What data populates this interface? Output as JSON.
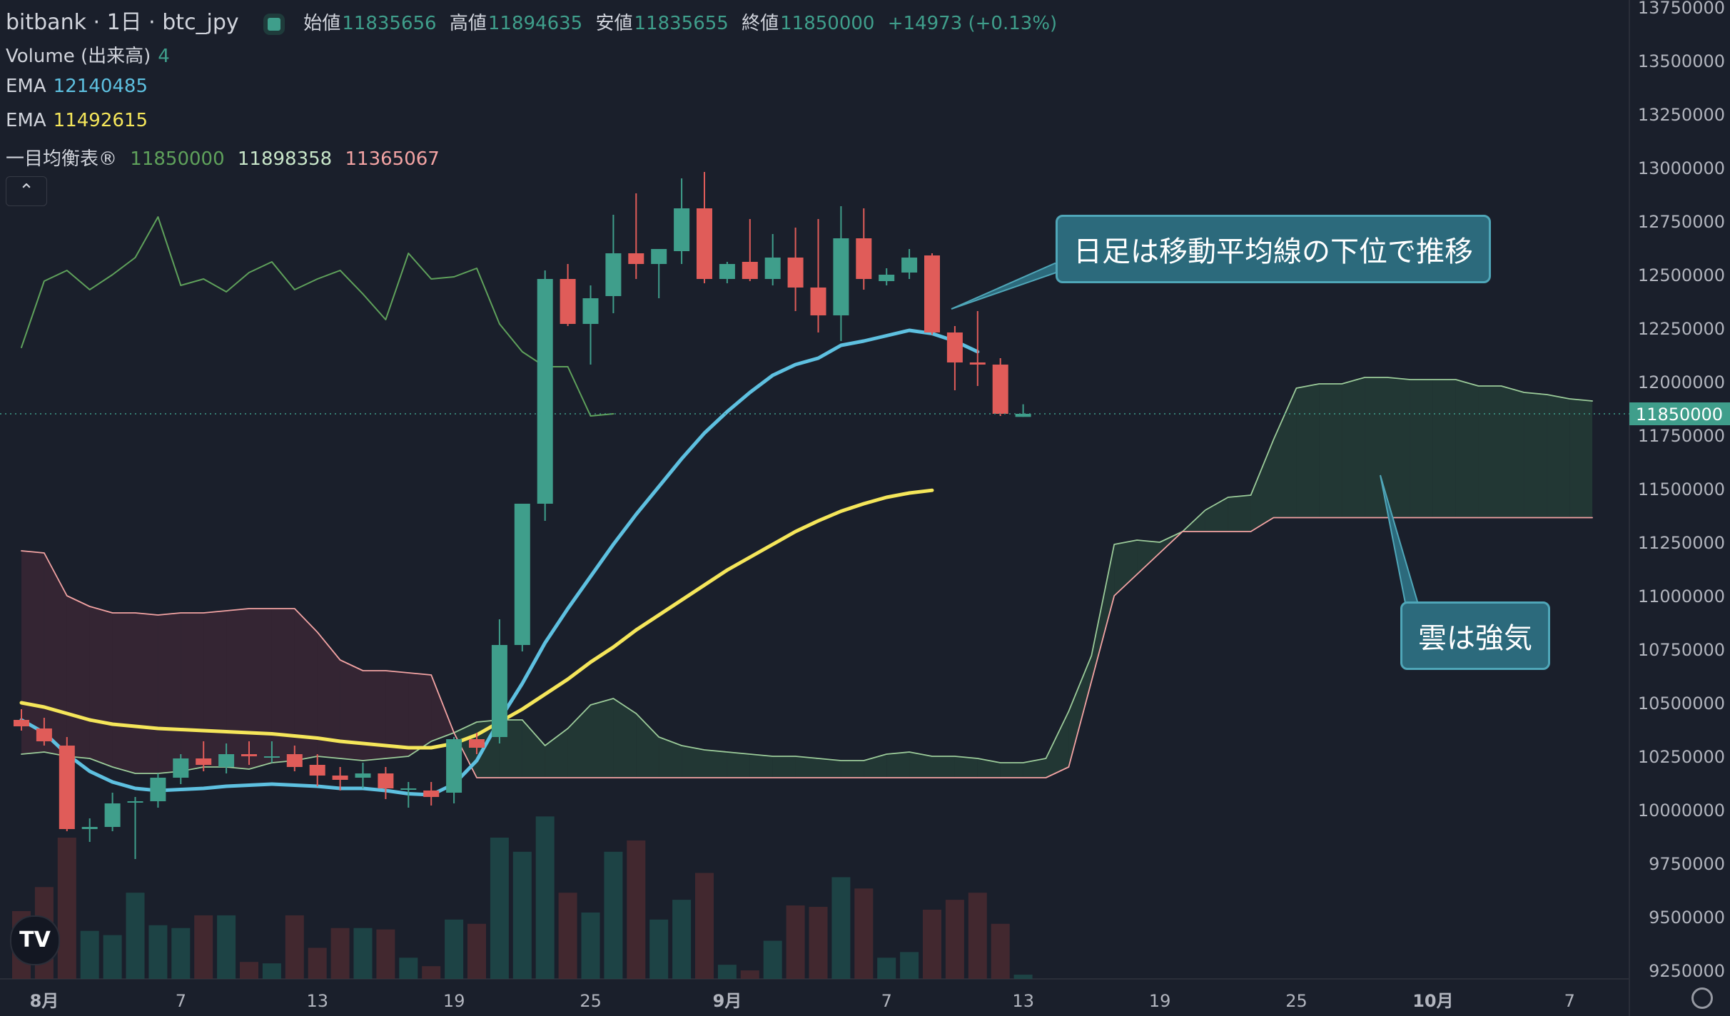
{
  "header": {
    "symbol": "bitbank · 1日 · btc_jpy",
    "open_label": "始値",
    "open": "11835656",
    "high_label": "高値",
    "high": "11894635",
    "low_label": "安値",
    "low": "11835655",
    "close_label": "終値",
    "close": "11850000",
    "change": "+14973 (+0.13%)"
  },
  "indicators": {
    "volume_label": "Volume (出来高)",
    "volume_value": "4",
    "ema1_label": "EMA",
    "ema1_value": "12140485",
    "ema2_label": "EMA",
    "ema2_value": "11492615",
    "ichimoku_label": "一目均衡表®",
    "ichimoku_v1": "11850000",
    "ichimoku_v2": "11898358",
    "ichimoku_v3": "11365067"
  },
  "annotations": {
    "callout1": "日足は移動平均線の下位で推移",
    "callout2": "雲は強気"
  },
  "price_tag": "11850000",
  "colors": {
    "up": "#3f9e8b",
    "down": "#e05c59",
    "ema_fast": "#5ec0e0",
    "ema_slow": "#f5e65a",
    "background": "#1a1f2b",
    "callout_bg": "#2c6a7c",
    "callout_border": "#4fa6b8"
  },
  "icons": [
    "chevron-up-icon",
    "tradingview-logo-icon",
    "settings-icon"
  ],
  "chart_data": {
    "type": "candlestick",
    "title": "bitbank · 1日 · btc_jpy",
    "x_ticks": [
      "8月",
      "7",
      "13",
      "19",
      "25",
      "9月",
      "7",
      "13",
      "19",
      "25",
      "10月",
      "7"
    ],
    "y_ticks": [
      "13750000",
      "13500000",
      "13250000",
      "13000000",
      "12750000",
      "12500000",
      "12250000",
      "12000000",
      "11750000",
      "11500000",
      "11250000",
      "11000000",
      "10750000",
      "10500000",
      "10250000",
      "10000000",
      "9750000",
      "9500000",
      "9250000"
    ],
    "ylim": [
      9250000,
      13750000
    ],
    "days": 72,
    "candles": [
      {
        "o": 10420000,
        "h": 10470000,
        "l": 10370000,
        "c": 10390000
      },
      {
        "o": 10380000,
        "h": 10430000,
        "l": 10300000,
        "c": 10320000
      },
      {
        "o": 10300000,
        "h": 10340000,
        "l": 9900000,
        "c": 9910000
      },
      {
        "o": 9910000,
        "h": 9960000,
        "l": 9850000,
        "c": 9920000
      },
      {
        "o": 9920000,
        "h": 10080000,
        "l": 9900000,
        "c": 10030000
      },
      {
        "o": 10040000,
        "h": 10060000,
        "l": 9770000,
        "c": 10040000
      },
      {
        "o": 10040000,
        "h": 10170000,
        "l": 10010000,
        "c": 10150000
      },
      {
        "o": 10150000,
        "h": 10260000,
        "l": 10120000,
        "c": 10240000
      },
      {
        "o": 10240000,
        "h": 10320000,
        "l": 10180000,
        "c": 10210000
      },
      {
        "o": 10200000,
        "h": 10310000,
        "l": 10170000,
        "c": 10260000
      },
      {
        "o": 10260000,
        "h": 10320000,
        "l": 10210000,
        "c": 10250000
      },
      {
        "o": 10250000,
        "h": 10320000,
        "l": 10220000,
        "c": 10250000
      },
      {
        "o": 10260000,
        "h": 10300000,
        "l": 10180000,
        "c": 10200000
      },
      {
        "o": 10210000,
        "h": 10260000,
        "l": 10110000,
        "c": 10160000
      },
      {
        "o": 10160000,
        "h": 10200000,
        "l": 10090000,
        "c": 10140000
      },
      {
        "o": 10150000,
        "h": 10220000,
        "l": 10100000,
        "c": 10170000
      },
      {
        "o": 10170000,
        "h": 10200000,
        "l": 10050000,
        "c": 10100000
      },
      {
        "o": 10100000,
        "h": 10130000,
        "l": 10010000,
        "c": 10100000
      },
      {
        "o": 10090000,
        "h": 10130000,
        "l": 10020000,
        "c": 10060000
      },
      {
        "o": 10080000,
        "h": 10340000,
        "l": 10030000,
        "c": 10330000
      },
      {
        "o": 10330000,
        "h": 10360000,
        "l": 10260000,
        "c": 10290000
      },
      {
        "o": 10340000,
        "h": 10890000,
        "l": 10310000,
        "c": 10770000
      },
      {
        "o": 10770000,
        "h": 11430000,
        "l": 10740000,
        "c": 11430000
      },
      {
        "o": 11430000,
        "h": 12520000,
        "l": 11350000,
        "c": 12480000
      },
      {
        "o": 12480000,
        "h": 12550000,
        "l": 12260000,
        "c": 12270000
      },
      {
        "o": 12270000,
        "h": 12450000,
        "l": 12080000,
        "c": 12390000
      },
      {
        "o": 12400000,
        "h": 12780000,
        "l": 12320000,
        "c": 12600000
      },
      {
        "o": 12600000,
        "h": 12880000,
        "l": 12480000,
        "c": 12550000
      },
      {
        "o": 12550000,
        "h": 12620000,
        "l": 12390000,
        "c": 12620000
      },
      {
        "o": 12610000,
        "h": 12950000,
        "l": 12550000,
        "c": 12810000
      },
      {
        "o": 12810000,
        "h": 12980000,
        "l": 12460000,
        "c": 12480000
      },
      {
        "o": 12480000,
        "h": 12560000,
        "l": 12460000,
        "c": 12550000
      },
      {
        "o": 12560000,
        "h": 12760000,
        "l": 12470000,
        "c": 12480000
      },
      {
        "o": 12480000,
        "h": 12690000,
        "l": 12450000,
        "c": 12580000
      },
      {
        "o": 12580000,
        "h": 12720000,
        "l": 12330000,
        "c": 12440000
      },
      {
        "o": 12440000,
        "h": 12760000,
        "l": 12230000,
        "c": 12310000
      },
      {
        "o": 12310000,
        "h": 12820000,
        "l": 12190000,
        "c": 12670000
      },
      {
        "o": 12670000,
        "h": 12810000,
        "l": 12430000,
        "c": 12480000
      },
      {
        "o": 12470000,
        "h": 12530000,
        "l": 12450000,
        "c": 12500000
      },
      {
        "o": 12510000,
        "h": 12620000,
        "l": 12480000,
        "c": 12580000
      },
      {
        "o": 12590000,
        "h": 12600000,
        "l": 12220000,
        "c": 12230000
      },
      {
        "o": 12230000,
        "h": 12260000,
        "l": 11960000,
        "c": 12090000
      },
      {
        "o": 12090000,
        "h": 12330000,
        "l": 11980000,
        "c": 12080000
      },
      {
        "o": 12080000,
        "h": 12110000,
        "l": 11840000,
        "c": 11850000
      },
      {
        "o": 11835656,
        "h": 11894635,
        "l": 11835655,
        "c": 11850000
      }
    ],
    "volume_heights": [
      0.48,
      0.65,
      1.0,
      0.34,
      0.31,
      0.61,
      0.38,
      0.36,
      0.45,
      0.45,
      0.12,
      0.11,
      0.45,
      0.22,
      0.36,
      0.36,
      0.35,
      0.15,
      0.09,
      0.42,
      0.39,
      1.0,
      0.9,
      1.15,
      0.61,
      0.47,
      0.9,
      0.98,
      0.42,
      0.56,
      0.75,
      0.1,
      0.06,
      0.27,
      0.52,
      0.51,
      0.72,
      0.64,
      0.15,
      0.19,
      0.49,
      0.56,
      0.61,
      0.39,
      0.03
    ],
    "ema_fast": [
      10420000,
      10360000,
      10260000,
      10180000,
      10130000,
      10100000,
      10090000,
      10095000,
      10100000,
      10110000,
      10115000,
      10120000,
      10115000,
      10110000,
      10100000,
      10100000,
      10090000,
      10075000,
      10070000,
      10120000,
      10230000,
      10420000,
      10590000,
      10780000,
      10940000,
      11090000,
      11240000,
      11380000,
      11510000,
      11640000,
      11760000,
      11860000,
      11950000,
      12030000,
      12080000,
      12110000,
      12170000,
      12190000,
      12215000,
      12240000,
      12225000,
      12190000,
      12140000
    ],
    "ema_slow": [
      10500000,
      10480000,
      10450000,
      10420000,
      10400000,
      10390000,
      10380000,
      10375000,
      10370000,
      10365000,
      10360000,
      10355000,
      10345000,
      10335000,
      10320000,
      10310000,
      10300000,
      10290000,
      10290000,
      10310000,
      10350000,
      10410000,
      10470000,
      10540000,
      10610000,
      10690000,
      10760000,
      10840000,
      10910000,
      10980000,
      11050000,
      11120000,
      11180000,
      11240000,
      11300000,
      11350000,
      11395000,
      11430000,
      11460000,
      11480000,
      11492615
    ],
    "chikou": [
      12160000,
      12470000,
      12520000,
      12430000,
      12500000,
      12580000,
      12770000,
      12450000,
      12480000,
      12420000,
      12510000,
      12560000,
      12430000,
      12480000,
      12520000,
      12410000,
      12290000,
      12600000,
      12480000,
      12490000,
      12530000,
      12270000,
      12140000,
      12070000,
      12070000,
      11840000,
      11850000
    ],
    "span_a": [
      10260000,
      10270000,
      10250000,
      10240000,
      10200000,
      10170000,
      10170000,
      10180000,
      10200000,
      10200000,
      10190000,
      10220000,
      10230000,
      10250000,
      10240000,
      10230000,
      10240000,
      10250000,
      10320000,
      10360000,
      10410000,
      10420000,
      10420000,
      10300000,
      10380000,
      10490000,
      10520000,
      10450000,
      10340000,
      10300000,
      10280000,
      10270000,
      10260000,
      10250000,
      10250000,
      10240000,
      10230000,
      10230000,
      10260000,
      10270000,
      10250000,
      10250000,
      10240000,
      10220000,
      10220000,
      10240000,
      10460000,
      10720000,
      11240000,
      11260000,
      11250000,
      11300000,
      11400000,
      11460000,
      11470000,
      11730000,
      11970000,
      11990000,
      11990000,
      12020000,
      12020000,
      12010000,
      12010000,
      12010000,
      11980000,
      11980000,
      11950000,
      11940000,
      11920000,
      11910000
    ],
    "span_b": [
      11210000,
      11200000,
      11000000,
      10950000,
      10920000,
      10920000,
      10910000,
      10920000,
      10920000,
      10930000,
      10940000,
      10940000,
      10940000,
      10830000,
      10700000,
      10650000,
      10650000,
      10640000,
      10630000,
      10360000,
      10150000,
      10150000,
      10150000,
      10150000,
      10150000,
      10150000,
      10150000,
      10150000,
      10150000,
      10150000,
      10150000,
      10150000,
      10150000,
      10150000,
      10150000,
      10150000,
      10150000,
      10150000,
      10150000,
      10150000,
      10150000,
      10150000,
      10150000,
      10150000,
      10150000,
      10150000,
      10200000,
      10600000,
      11000000,
      11100000,
      11200000,
      11300000,
      11300000,
      11300000,
      11300000,
      11365067,
      11365067,
      11365067,
      11365067,
      11365067,
      11365067,
      11365067,
      11365067,
      11365067,
      11365067,
      11365067,
      11365067,
      11365067,
      11365067,
      11365067
    ]
  }
}
